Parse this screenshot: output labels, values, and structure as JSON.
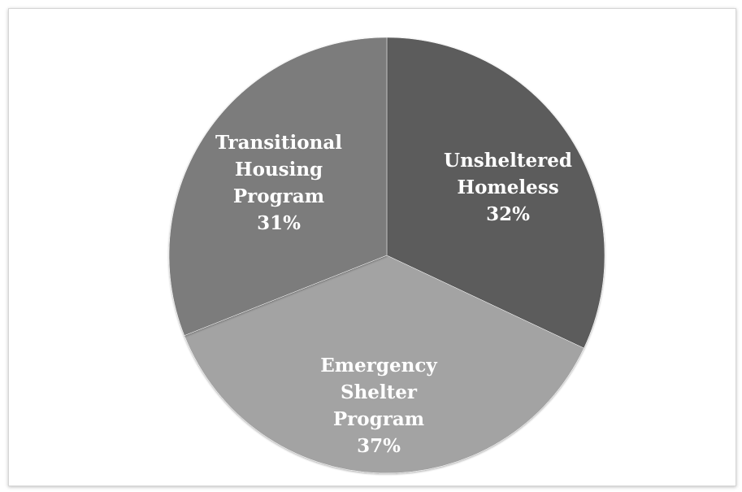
{
  "chart_data": {
    "type": "pie",
    "title": "",
    "slices": [
      {
        "label_lines": [
          "Unsheltered",
          "Homeless"
        ],
        "percent_label": "32%",
        "value": 32,
        "color": "#5b5b5b"
      },
      {
        "label_lines": [
          "Emergency",
          "Shelter",
          "Program"
        ],
        "percent_label": "37%",
        "value": 37,
        "color": "#a3a3a3"
      },
      {
        "label_lines": [
          "Transitional",
          "Housing",
          "Program"
        ],
        "percent_label": "31%",
        "value": 31,
        "color": "#7b7b7b"
      }
    ],
    "start_angle_deg": 0,
    "direction": "clockwise",
    "label_color": "#ffffff",
    "legend": "none"
  }
}
